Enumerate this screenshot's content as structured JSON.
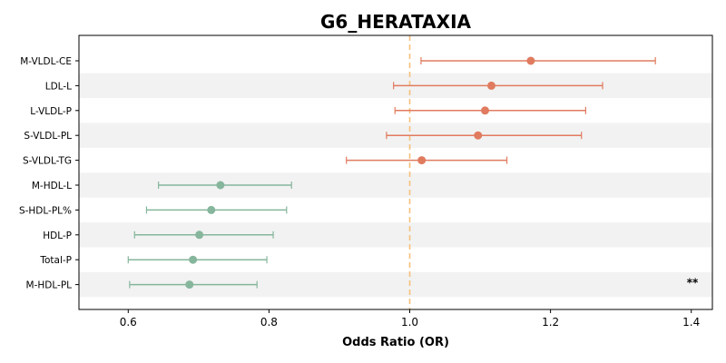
{
  "chart_data": {
    "type": "forest",
    "title": "G6_HERATAXIA",
    "xlabel": "Odds Ratio (OR)",
    "ylabel": "",
    "xlim": [
      0.53,
      1.43
    ],
    "xticks": [
      0.6,
      0.8,
      1.0,
      1.2,
      1.4
    ],
    "xtick_labels": [
      "0.6",
      "0.8",
      "1.0",
      "1.2",
      "1.4"
    ],
    "reference_line": 1.0,
    "colors": {
      "positive": "#e07b5f",
      "negative": "#86b69c",
      "reference": "#f5c07a",
      "stripe": "#f2f2f2"
    },
    "rows": [
      {
        "label": "M-VLDL-CE",
        "or": 1.172,
        "ci_low": 1.016,
        "ci_high": 1.349,
        "annotation": ""
      },
      {
        "label": "LDL-L",
        "or": 1.116,
        "ci_low": 0.977,
        "ci_high": 1.274,
        "annotation": ""
      },
      {
        "label": "L-VLDL-P",
        "or": 1.107,
        "ci_low": 0.979,
        "ci_high": 1.25,
        "annotation": ""
      },
      {
        "label": "S-VLDL-PL",
        "or": 1.097,
        "ci_low": 0.967,
        "ci_high": 1.244,
        "annotation": ""
      },
      {
        "label": "S-VLDL-TG",
        "or": 1.017,
        "ci_low": 0.91,
        "ci_high": 1.138,
        "annotation": ""
      },
      {
        "label": "M-HDL-L",
        "or": 0.731,
        "ci_low": 0.643,
        "ci_high": 0.832,
        "annotation": ""
      },
      {
        "label": "S-HDL-PL%",
        "or": 0.718,
        "ci_low": 0.626,
        "ci_high": 0.825,
        "annotation": ""
      },
      {
        "label": "HDL-P",
        "or": 0.701,
        "ci_low": 0.609,
        "ci_high": 0.806,
        "annotation": ""
      },
      {
        "label": "Total-P",
        "or": 0.692,
        "ci_low": 0.6,
        "ci_high": 0.797,
        "annotation": ""
      },
      {
        "label": "M-HDL-PL",
        "or": 0.687,
        "ci_low": 0.602,
        "ci_high": 0.783,
        "annotation": "**"
      }
    ]
  }
}
